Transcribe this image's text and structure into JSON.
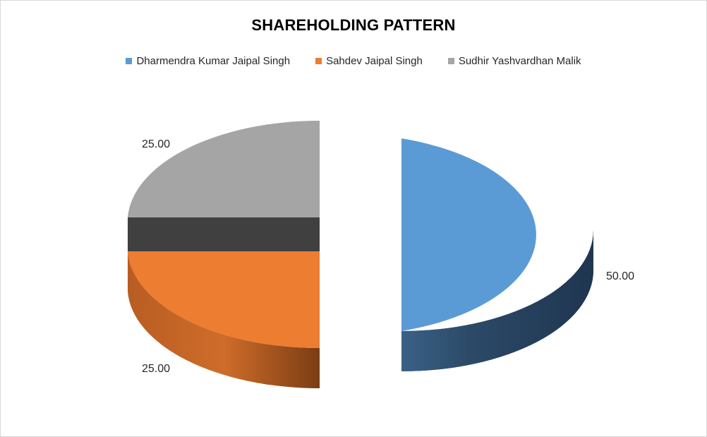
{
  "chart_data": {
    "type": "pie",
    "title": "SHAREHOLDING PATTERN",
    "style": "3d-exploded",
    "legend_position": "top",
    "slices": [
      {
        "name": "Dharmendra Kumar Jaipal Singh",
        "value": 50,
        "label": "50.00",
        "color": "#5b9bd5"
      },
      {
        "name": "Sahdev Jaipal Singh",
        "value": 25,
        "label": "25.00",
        "color": "#ed7d31"
      },
      {
        "name": "Sudhir Yashvardhan Malik",
        "value": 25,
        "label": "25.00",
        "color": "#a5a5a5"
      }
    ]
  }
}
